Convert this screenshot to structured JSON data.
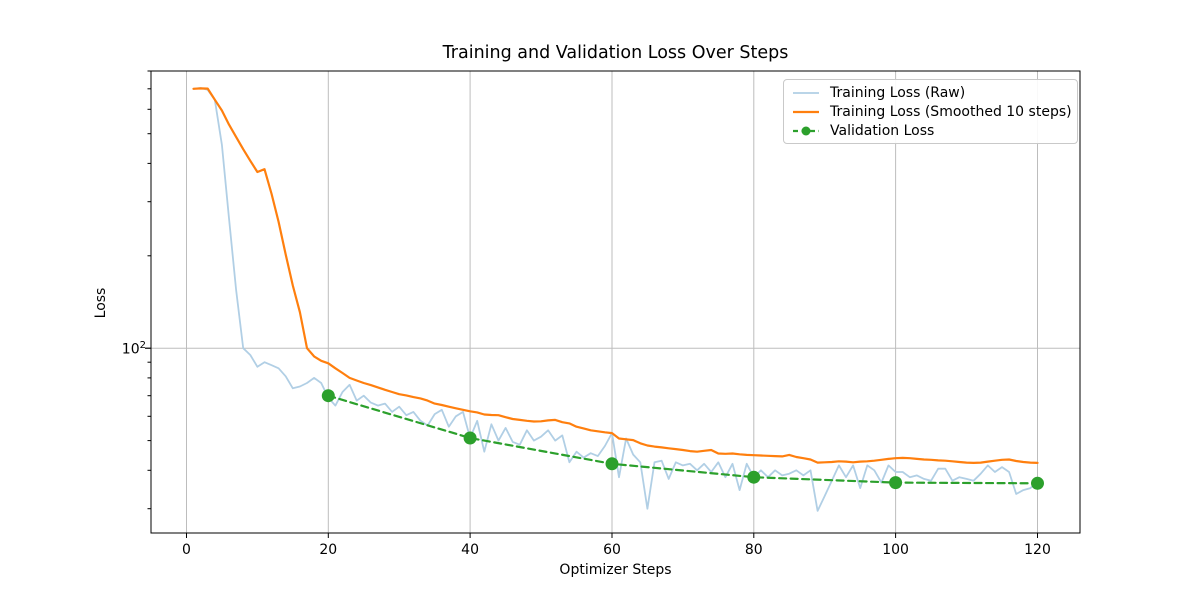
{
  "chart_data": {
    "type": "line",
    "title": "Training and Validation Loss Over Steps",
    "xlabel": "Optimizer Steps",
    "ylabel": "Loss",
    "yscale": "log",
    "grid": true,
    "grid_color": "#bdbdbd",
    "axis_color": "#000000",
    "background": "#ffffff",
    "xlim": [
      -5,
      126
    ],
    "ylim": [
      25,
      800
    ],
    "x_ticks": [
      0,
      20,
      40,
      60,
      80,
      100,
      120
    ],
    "y_major_ticks": [
      100
    ],
    "y_tick_label": {
      "base": "10",
      "exponent": "2"
    },
    "y_minor_ticks": [
      30,
      40,
      50,
      60,
      70,
      80,
      90,
      200,
      300,
      400,
      500,
      600,
      700,
      800
    ],
    "legend": {
      "position": "upper right"
    },
    "series": [
      {
        "name": "Training Loss (Raw)",
        "color": "#b1cfe5",
        "line_style": "solid",
        "line_width": 1.8,
        "x_start": 1,
        "x_step": 1,
        "values": [
          700,
          704,
          695,
          645,
          460,
          265,
          155,
          100,
          95,
          87,
          90,
          88,
          86,
          81,
          74,
          75,
          77,
          80,
          77,
          69,
          65,
          72,
          76,
          67.5,
          70,
          66.5,
          65,
          66,
          62,
          64.5,
          60.5,
          62,
          58,
          56,
          61,
          63,
          55.5,
          60,
          62,
          51,
          58,
          46,
          56.5,
          50,
          55,
          49.5,
          48.5,
          54,
          50,
          51.5,
          54,
          50,
          52,
          42.5,
          46,
          44,
          45.5,
          44.5,
          48,
          52.9,
          38,
          50.8,
          45,
          42.5,
          30,
          42.5,
          43,
          37.5,
          42.5,
          41.5,
          42,
          40,
          42,
          39.5,
          42.5,
          38,
          42,
          34.5,
          42,
          38,
          40,
          38,
          40,
          38.5,
          39,
          40,
          38.5,
          40,
          29.5,
          33,
          37,
          41.5,
          38,
          41.5,
          35,
          41.5,
          40,
          36.5,
          41.5,
          39.5,
          39.5,
          38,
          38.5,
          37.5,
          37,
          40.5,
          40.5,
          37,
          38,
          37.5,
          37,
          39,
          41.5,
          39.5,
          41,
          39.5,
          33.5,
          34.5,
          35,
          36.7
        ]
      },
      {
        "name": "Training Loss (Smoothed 10 steps)",
        "color": "#ff7f0e",
        "line_style": "solid",
        "line_width": 2.2,
        "x_start": 1,
        "x_step": 1,
        "values": [
          700,
          702,
          701,
          645,
          595,
          535,
          488,
          445,
          408,
          375,
          383,
          318,
          258,
          202,
          160,
          131,
          100,
          94,
          91,
          89.3,
          86,
          83,
          80,
          78.5,
          77,
          75.8,
          74.5,
          73.2,
          72,
          70.8,
          70.2,
          69.3,
          68.6,
          67.5,
          66,
          65.3,
          64.5,
          63.7,
          63,
          62.3,
          61.8,
          60.8,
          60.6,
          60.5,
          59.6,
          58.8,
          58.4,
          58,
          57.7,
          57.8,
          58.2,
          58.4,
          57.4,
          56.9,
          55.5,
          54.8,
          54,
          53.6,
          53.2,
          52.9,
          50.8,
          50.5,
          50.2,
          49,
          48.2,
          47.8,
          47.5,
          47.2,
          46.9,
          46.6,
          46.2,
          46,
          46.3,
          46.6,
          45.4,
          45.3,
          45.4,
          45.1,
          44.9,
          44.8,
          44.7,
          44.6,
          44.5,
          44.4,
          44.9,
          44.2,
          43.8,
          43.4,
          42.4,
          42.5,
          42.6,
          42.8,
          42.7,
          42.5,
          42.7,
          42.8,
          43,
          43.3,
          43.6,
          43.8,
          43.9,
          43.8,
          43.6,
          43.4,
          43.3,
          43.1,
          43,
          42.8,
          42.6,
          42.4,
          42.3,
          42.4,
          42.7,
          43,
          43.3,
          43.4,
          42.9,
          42.6,
          42.4,
          42.3
        ]
      },
      {
        "name": "Validation Loss",
        "color": "#2ca02c",
        "line_style": "dashed",
        "line_width": 2.2,
        "marker": "circle",
        "marker_radius": 6.5,
        "x": [
          20,
          40,
          60,
          80,
          100,
          120
        ],
        "values": [
          70,
          51,
          42,
          38,
          36.5,
          36.3
        ]
      }
    ]
  }
}
